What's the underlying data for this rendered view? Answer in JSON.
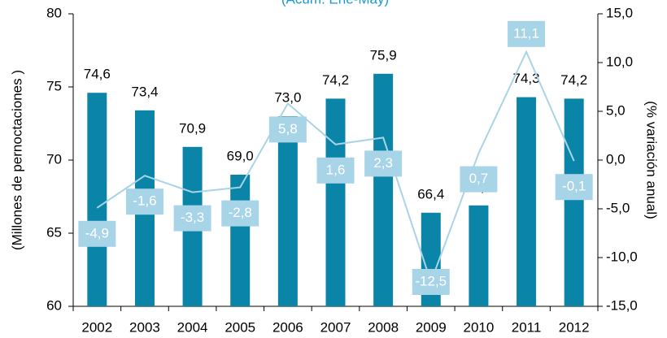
{
  "chart_data": {
    "type": "bar_line",
    "subtitle": "(Acum. Ene-May)",
    "ylabel": "(Millones de pernoctaciones )",
    "y2label": "(% variación anual)",
    "categories": [
      "2002",
      "2003",
      "2004",
      "2005",
      "2006",
      "2007",
      "2008",
      "2009",
      "2010",
      "2011",
      "2012"
    ],
    "series": [
      {
        "name": "Pernoctaciones",
        "type": "bar",
        "color": "#0a85a8",
        "values": [
          74.6,
          73.4,
          70.9,
          69.0,
          73.0,
          74.2,
          75.9,
          66.4,
          66.9,
          74.3,
          74.2
        ],
        "value_labels": [
          "74,6",
          "73,4",
          "70,9",
          "69,0",
          "73,0",
          "74,2",
          "75,9",
          "66,4",
          "66,9",
          "74,3",
          "74,2"
        ]
      },
      {
        "name": "Variación anual",
        "type": "line",
        "axis": "y2",
        "color": "#a8d4e8",
        "values": [
          -4.9,
          -1.6,
          -3.3,
          -2.8,
          5.8,
          1.6,
          2.3,
          -12.5,
          0.7,
          11.1,
          -0.1
        ],
        "value_labels": [
          "-4,9",
          "-1,6",
          "-3,3",
          "-2,8",
          "5,8",
          "1,6",
          "2,3",
          "-12,5",
          "0,7",
          "11,1",
          "-0,1"
        ]
      }
    ],
    "ylim": [
      60,
      80
    ],
    "yticks": [
      60,
      65,
      70,
      75,
      80
    ],
    "y2lim": [
      -15,
      15
    ],
    "y2ticks": [
      {
        "value": -15,
        "label": "-15,0"
      },
      {
        "value": -10,
        "label": "-10,0"
      },
      {
        "value": -5,
        "label": "-5,0"
      },
      {
        "value": 0,
        "label": "0,0"
      },
      {
        "value": 5,
        "label": "5,0"
      },
      {
        "value": 10,
        "label": "10,0"
      },
      {
        "value": 15,
        "label": "15,0"
      }
    ]
  }
}
